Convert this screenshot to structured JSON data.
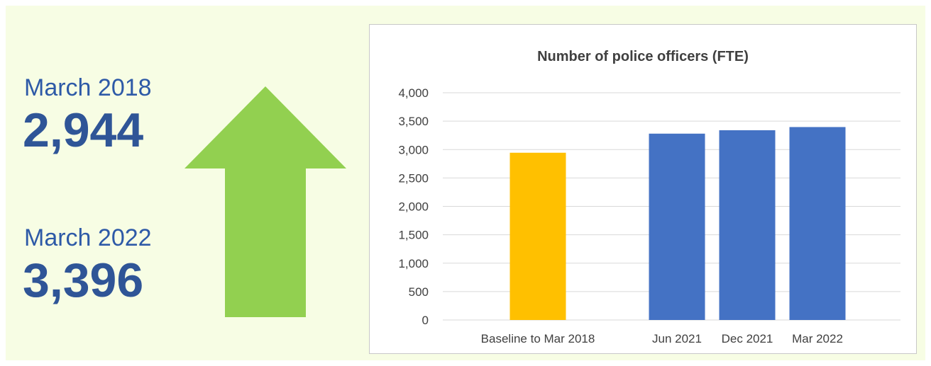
{
  "summary": {
    "first": {
      "label": "March 2018",
      "value": "2,944"
    },
    "second": {
      "label": "March 2022",
      "value": "3,396"
    }
  },
  "arrow": {
    "icon": "up-arrow-icon",
    "color": "#92d050"
  },
  "colors": {
    "baseline_bar": "#ffc000",
    "bar": "#4472c4",
    "gridline": "#d9d9d9",
    "stat_text": "#2f5597"
  },
  "chart_data": {
    "type": "bar",
    "title": "Number of police officers (FTE)",
    "xlabel": "",
    "ylabel": "",
    "categories": [
      "Baseline to Mar 2018",
      "Jun 2021",
      "Dec 2021",
      "Mar 2022"
    ],
    "values": [
      2944,
      3280,
      3340,
      3396
    ],
    "bar_colors": [
      "#ffc000",
      "#4472c4",
      "#4472c4",
      "#4472c4"
    ],
    "ylim": [
      0,
      4000
    ],
    "yticks": [
      0,
      500,
      1000,
      1500,
      2000,
      2500,
      3000,
      3500,
      4000
    ],
    "ytick_labels": [
      "0",
      "500",
      "1,000",
      "1,500",
      "2,000",
      "2,500",
      "3,000",
      "3,500",
      "4,000"
    ],
    "grid": true,
    "legend": "none"
  }
}
